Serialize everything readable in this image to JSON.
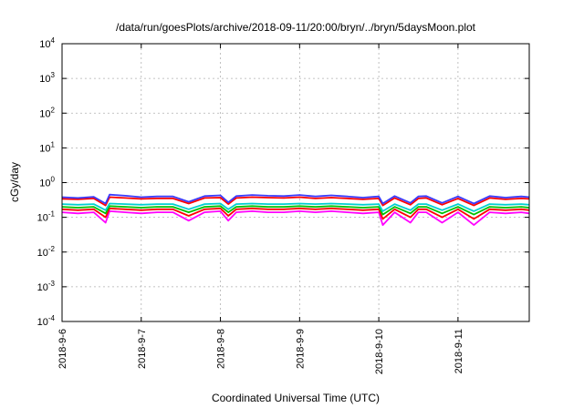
{
  "chart_data": {
    "type": "line",
    "title": "/data/run/goesPlots/archive/2018-09-11/20:00/bryn/../bryn/5daysMoon.plot",
    "xlabel": "Coordinated Universal Time (UTC)",
    "ylabel": "cGy/day",
    "yscale": "log",
    "ylim": [
      0.0001,
      10000
    ],
    "xlim": [
      0,
      5.9
    ],
    "grid": true,
    "x_tick_values": [
      0,
      1,
      2,
      3,
      4,
      5
    ],
    "x_tick_labels": [
      "2018-9-6",
      "2018-9-7",
      "2018-9-8",
      "2018-9-9",
      "2018-9-10",
      "2018-9-11"
    ],
    "y_ticks": [
      {
        "value": 0.0001,
        "base": "10",
        "exp": "-4"
      },
      {
        "value": 0.001,
        "base": "10",
        "exp": "-3"
      },
      {
        "value": 0.01,
        "base": "10",
        "exp": "-2"
      },
      {
        "value": 0.1,
        "base": "10",
        "exp": "-1"
      },
      {
        "value": 1,
        "base": "10",
        "exp": "0"
      },
      {
        "value": 10,
        "base": "10",
        "exp": "1"
      },
      {
        "value": 100,
        "base": "10",
        "exp": "2"
      },
      {
        "value": 1000,
        "base": "10",
        "exp": "3"
      },
      {
        "value": 10000,
        "base": "10",
        "exp": "4"
      }
    ],
    "series": [
      {
        "color": "#ff00ff",
        "x": [
          0,
          0.2,
          0.4,
          0.55,
          0.6,
          0.8,
          1.0,
          1.2,
          1.4,
          1.6,
          1.8,
          2.0,
          2.1,
          2.2,
          2.4,
          2.6,
          2.8,
          3.0,
          3.2,
          3.4,
          3.6,
          3.8,
          4.0,
          4.05,
          4.2,
          4.4,
          4.5,
          4.6,
          4.8,
          5.0,
          5.2,
          5.4,
          5.6,
          5.8,
          5.9
        ],
        "values": [
          0.14,
          0.13,
          0.14,
          0.07,
          0.15,
          0.14,
          0.13,
          0.14,
          0.14,
          0.08,
          0.14,
          0.15,
          0.08,
          0.14,
          0.15,
          0.14,
          0.14,
          0.15,
          0.14,
          0.15,
          0.14,
          0.13,
          0.14,
          0.06,
          0.14,
          0.07,
          0.14,
          0.14,
          0.07,
          0.14,
          0.06,
          0.14,
          0.13,
          0.14,
          0.13
        ]
      },
      {
        "color": "#ff0000",
        "x": [
          0,
          0.2,
          0.4,
          0.55,
          0.6,
          0.8,
          1.0,
          1.2,
          1.4,
          1.6,
          1.8,
          2.0,
          2.1,
          2.2,
          2.4,
          2.6,
          2.8,
          3.0,
          3.2,
          3.4,
          3.6,
          3.8,
          4.0,
          4.05,
          4.2,
          4.4,
          4.5,
          4.6,
          4.8,
          5.0,
          5.2,
          5.4,
          5.6,
          5.8,
          5.9
        ],
        "values": [
          0.17,
          0.16,
          0.17,
          0.1,
          0.18,
          0.17,
          0.16,
          0.17,
          0.17,
          0.11,
          0.17,
          0.18,
          0.11,
          0.17,
          0.18,
          0.17,
          0.17,
          0.18,
          0.17,
          0.18,
          0.17,
          0.16,
          0.17,
          0.09,
          0.17,
          0.1,
          0.17,
          0.17,
          0.1,
          0.17,
          0.09,
          0.17,
          0.16,
          0.17,
          0.16
        ]
      },
      {
        "color": "#00c000",
        "x": [
          0,
          0.2,
          0.4,
          0.55,
          0.6,
          0.8,
          1.0,
          1.2,
          1.4,
          1.6,
          1.8,
          2.0,
          2.1,
          2.2,
          2.4,
          2.6,
          2.8,
          3.0,
          3.2,
          3.4,
          3.6,
          3.8,
          4.0,
          4.05,
          4.2,
          4.4,
          4.5,
          4.6,
          4.8,
          5.0,
          5.2,
          5.4,
          5.6,
          5.8,
          5.9
        ],
        "values": [
          0.2,
          0.19,
          0.2,
          0.13,
          0.21,
          0.2,
          0.19,
          0.2,
          0.2,
          0.14,
          0.2,
          0.21,
          0.14,
          0.2,
          0.21,
          0.2,
          0.2,
          0.21,
          0.2,
          0.21,
          0.2,
          0.19,
          0.2,
          0.12,
          0.2,
          0.13,
          0.2,
          0.2,
          0.13,
          0.2,
          0.12,
          0.2,
          0.19,
          0.2,
          0.19
        ]
      },
      {
        "color": "#00d0d0",
        "x": [
          0,
          0.2,
          0.4,
          0.55,
          0.6,
          0.8,
          1.0,
          1.2,
          1.4,
          1.6,
          1.8,
          2.0,
          2.1,
          2.2,
          2.4,
          2.6,
          2.8,
          3.0,
          3.2,
          3.4,
          3.6,
          3.8,
          4.0,
          4.05,
          4.2,
          4.4,
          4.5,
          4.6,
          4.8,
          5.0,
          5.2,
          5.4,
          5.6,
          5.8,
          5.9
        ],
        "values": [
          0.24,
          0.23,
          0.24,
          0.16,
          0.25,
          0.24,
          0.23,
          0.24,
          0.24,
          0.17,
          0.24,
          0.25,
          0.17,
          0.24,
          0.25,
          0.24,
          0.24,
          0.25,
          0.24,
          0.25,
          0.24,
          0.23,
          0.24,
          0.15,
          0.24,
          0.16,
          0.24,
          0.24,
          0.16,
          0.24,
          0.15,
          0.24,
          0.23,
          0.24,
          0.23
        ]
      },
      {
        "color": "#ff0000",
        "x": [
          0,
          0.2,
          0.4,
          0.55,
          0.6,
          0.8,
          1.0,
          1.2,
          1.4,
          1.6,
          1.8,
          2.0,
          2.1,
          2.2,
          2.4,
          2.6,
          2.8,
          3.0,
          3.2,
          3.4,
          3.6,
          3.8,
          4.0,
          4.05,
          4.2,
          4.4,
          4.5,
          4.6,
          4.8,
          5.0,
          5.2,
          5.4,
          5.6,
          5.8,
          5.9
        ],
        "values": [
          0.34,
          0.33,
          0.35,
          0.22,
          0.38,
          0.36,
          0.34,
          0.35,
          0.35,
          0.25,
          0.36,
          0.37,
          0.24,
          0.36,
          0.38,
          0.37,
          0.36,
          0.38,
          0.35,
          0.37,
          0.35,
          0.33,
          0.35,
          0.22,
          0.36,
          0.23,
          0.35,
          0.36,
          0.23,
          0.35,
          0.22,
          0.36,
          0.33,
          0.35,
          0.34
        ]
      },
      {
        "color": "#3a3aff",
        "x": [
          0,
          0.2,
          0.4,
          0.55,
          0.6,
          0.8,
          1.0,
          1.2,
          1.4,
          1.6,
          1.8,
          2.0,
          2.1,
          2.2,
          2.4,
          2.6,
          2.8,
          3.0,
          3.2,
          3.4,
          3.6,
          3.8,
          4.0,
          4.05,
          4.2,
          4.4,
          4.5,
          4.6,
          4.8,
          5.0,
          5.2,
          5.4,
          5.6,
          5.8,
          5.9
        ],
        "values": [
          0.38,
          0.36,
          0.39,
          0.25,
          0.45,
          0.42,
          0.38,
          0.4,
          0.4,
          0.28,
          0.41,
          0.43,
          0.27,
          0.41,
          0.44,
          0.42,
          0.41,
          0.44,
          0.4,
          0.43,
          0.4,
          0.37,
          0.4,
          0.25,
          0.41,
          0.26,
          0.4,
          0.41,
          0.26,
          0.4,
          0.25,
          0.41,
          0.37,
          0.4,
          0.38
        ]
      }
    ]
  }
}
